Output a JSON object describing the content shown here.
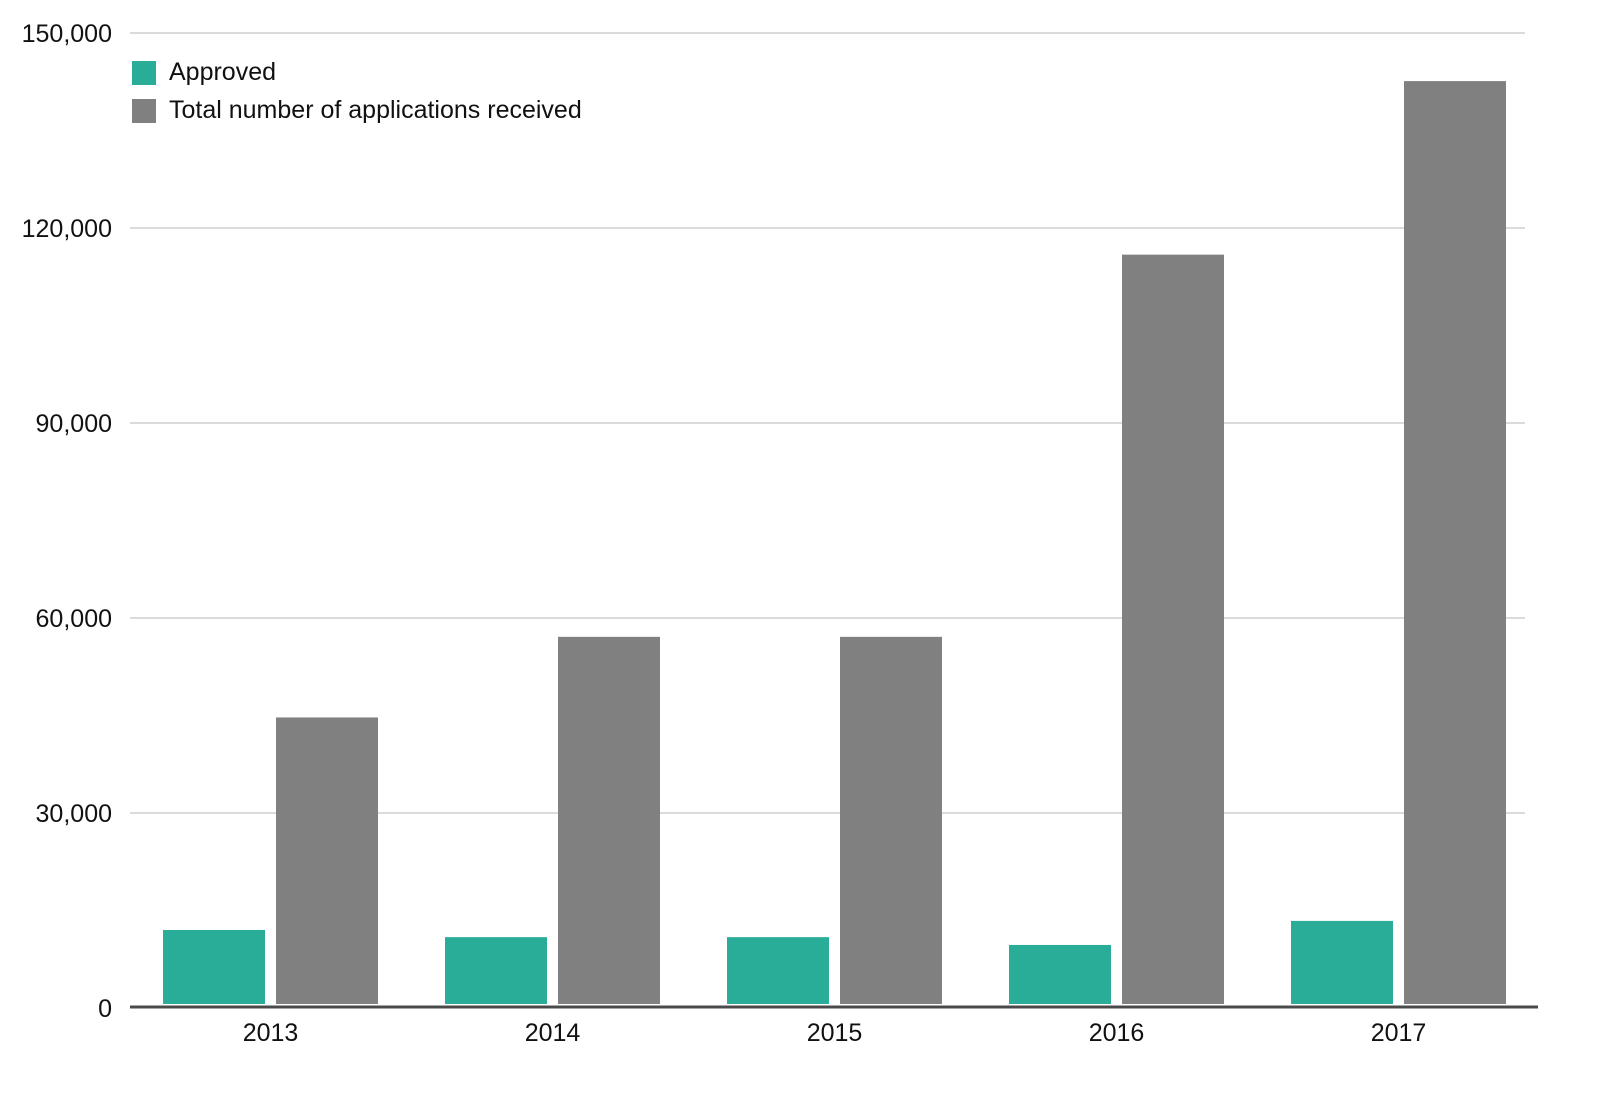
{
  "chart_data": {
    "type": "bar",
    "categories": [
      "2013",
      "2014",
      "2015",
      "2016",
      "2017"
    ],
    "series": [
      {
        "name": "Approved",
        "color": "#2aad98",
        "values": [
          12000,
          10900,
          10900,
          9700,
          13400
        ]
      },
      {
        "name": "Total number of applications received",
        "color": "#808080",
        "values": [
          44700,
          57100,
          57100,
          115900,
          142600
        ]
      }
    ],
    "title": "",
    "xlabel": "",
    "ylabel": "",
    "ylim": [
      0,
      150000
    ],
    "yticks": [
      {
        "value": 0,
        "label": "0"
      },
      {
        "value": 30000,
        "label": "30,000"
      },
      {
        "value": 60000,
        "label": "60,000"
      },
      {
        "value": 90000,
        "label": "90,000"
      },
      {
        "value": 120000,
        "label": "120,000"
      },
      {
        "value": 150000,
        "label": "150,000"
      }
    ],
    "grid": true,
    "legend_position": "top-left",
    "colors": {
      "grid": "#cfcfcf",
      "axis": "#4a4a4a",
      "text": "#111111"
    }
  }
}
